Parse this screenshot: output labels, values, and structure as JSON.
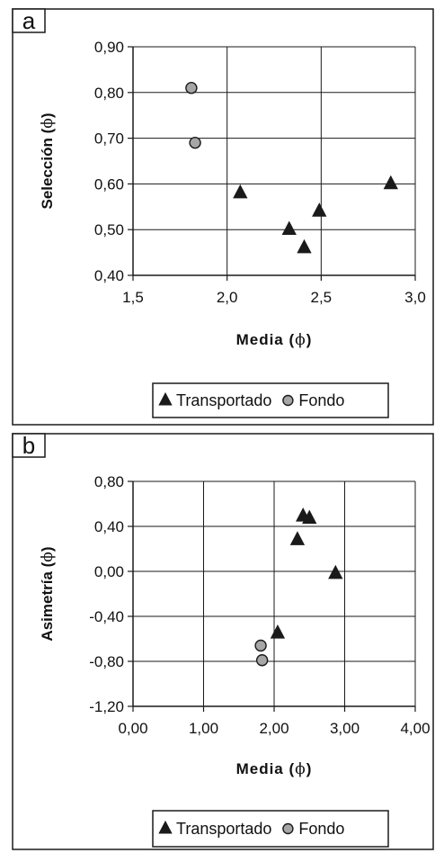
{
  "chart_data": [
    {
      "type": "scatter",
      "panel_label": "a",
      "xlabel": "Media",
      "ylabel": "Selección",
      "unit_symbol": "ϕ",
      "xlim": [
        1.5,
        3.0
      ],
      "ylim": [
        0.4,
        0.9
      ],
      "xticks": [
        1.5,
        2.0,
        2.5,
        3.0
      ],
      "yticks": [
        0.4,
        0.5,
        0.6,
        0.7,
        0.8,
        0.9
      ],
      "xtick_labels": [
        "1,5",
        "2,0",
        "2,5",
        "3,0"
      ],
      "ytick_labels": [
        "0,40",
        "0,50",
        "0,60",
        "0,70",
        "0,80",
        "0,90"
      ],
      "grid": true,
      "legend_position": "bottom",
      "series": [
        {
          "name": "Transportado",
          "marker": "triangle",
          "points": [
            [
              2.07,
              0.58
            ],
            [
              2.33,
              0.5
            ],
            [
              2.41,
              0.46
            ],
            [
              2.49,
              0.54
            ],
            [
              2.87,
              0.6
            ]
          ]
        },
        {
          "name": "Fondo",
          "marker": "circle",
          "points": [
            [
              1.81,
              0.81
            ],
            [
              1.83,
              0.69
            ]
          ]
        }
      ]
    },
    {
      "type": "scatter",
      "panel_label": "b",
      "xlabel": "Media",
      "ylabel": "Asimetría",
      "unit_symbol": "ϕ",
      "xlim": [
        0.0,
        4.0
      ],
      "ylim": [
        -1.2,
        0.8
      ],
      "xticks": [
        0,
        1,
        2,
        3,
        4
      ],
      "yticks": [
        -1.2,
        -0.8,
        -0.4,
        0.0,
        0.4,
        0.8
      ],
      "xtick_labels": [
        "0,00",
        "1,00",
        "2,00",
        "3,00",
        "4,00"
      ],
      "ytick_labels": [
        "-1,20",
        "-0,80",
        "-0,40",
        "0,00",
        "0,40",
        "0,80"
      ],
      "grid": true,
      "legend_position": "bottom",
      "series": [
        {
          "name": "Transportado",
          "marker": "triangle",
          "points": [
            [
              2.05,
              -0.55
            ],
            [
              2.33,
              0.28
            ],
            [
              2.41,
              0.49
            ],
            [
              2.5,
              0.47
            ],
            [
              2.87,
              -0.02
            ]
          ]
        },
        {
          "name": "Fondo",
          "marker": "circle",
          "points": [
            [
              1.81,
              -0.66
            ],
            [
              1.83,
              -0.79
            ]
          ]
        }
      ]
    }
  ],
  "colors": {
    "triangle_fill": "#1a1a1a",
    "circle_fill": "#a6a6a6",
    "circle_stroke": "#1a1a1a",
    "grid": "#1a1a1a",
    "frame": "#1a1a1a"
  }
}
